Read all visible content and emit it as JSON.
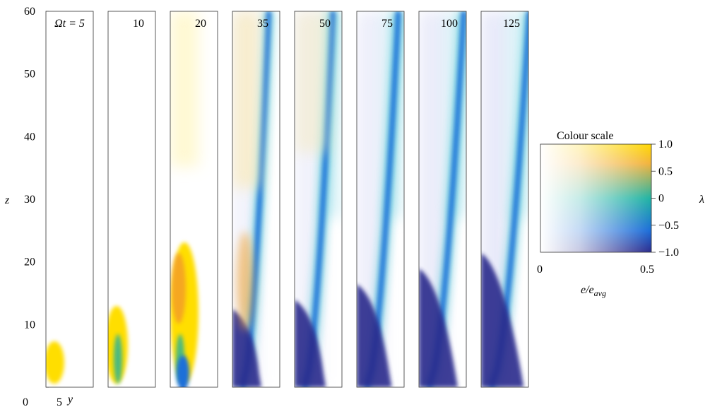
{
  "chart_data": {
    "type": "heatmap",
    "description_free": true,
    "panels": [
      {
        "omega_t_label": "Ωt = 5",
        "omega_t": 5
      },
      {
        "omega_t_label": "10",
        "omega_t": 10
      },
      {
        "omega_t_label": "20",
        "omega_t": 20
      },
      {
        "omega_t_label": "35",
        "omega_t": 35
      },
      {
        "omega_t_label": "50",
        "omega_t": 50
      },
      {
        "omega_t_label": "75",
        "omega_t": 75
      },
      {
        "omega_t_label": "100",
        "omega_t": 100
      },
      {
        "omega_t_label": "125",
        "omega_t": 125
      }
    ],
    "z_axis": {
      "label": "z",
      "ticks": [
        "0",
        "10",
        "20",
        "30",
        "40",
        "50",
        "60"
      ],
      "ylim": [
        0,
        60
      ]
    },
    "y_axis": {
      "label": "y",
      "ticks": [
        "0",
        "5"
      ]
    },
    "colour_scale": {
      "title": "Colour scale",
      "lambda_label": "λ",
      "lambda_ticks": [
        "1.0",
        "0.5",
        "0",
        "−0.5",
        "−1.0"
      ],
      "lambda_range": [
        -1.0,
        1.0
      ],
      "e_label": "e/e",
      "e_sub": "avg",
      "e_ticks": [
        "0",
        "0.5"
      ],
      "e_range": [
        0,
        0.5
      ],
      "colors": {
        "lambda_pos": "#ffd200",
        "lambda_mid_pos": "#f0a030",
        "lambda_zero": "#20b0a0",
        "lambda_neg": "#1a6ad8",
        "lambda_min": "#2b2a90"
      }
    }
  }
}
